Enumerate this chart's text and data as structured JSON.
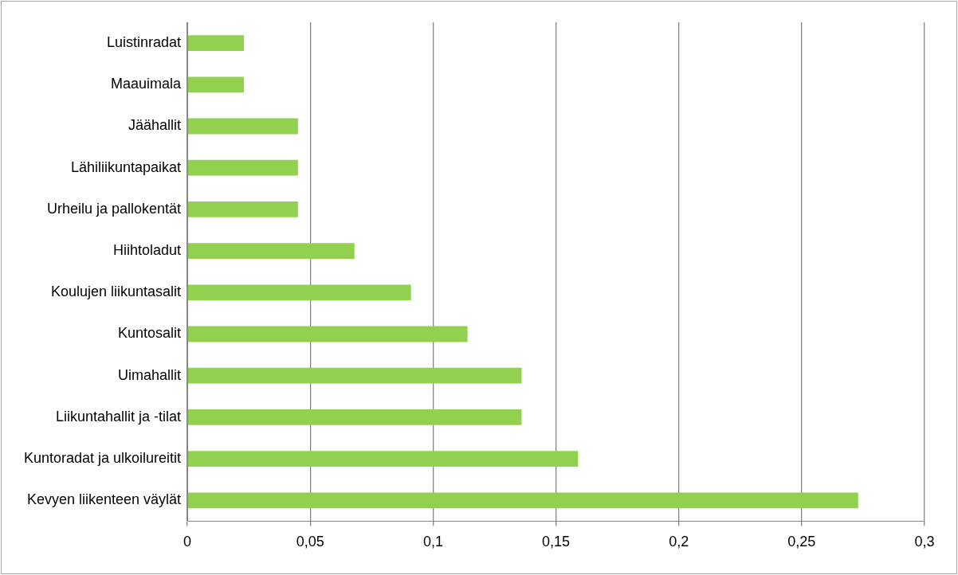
{
  "chart_data": {
    "type": "bar",
    "orientation": "horizontal",
    "categories": [
      "Luistinradat",
      "Maauimala",
      "Jäähallit",
      "Lähiliikuntapaikat",
      "Urheilu ja pallokentät",
      "Hiihtoladut",
      "Koulujen liikuntasalit",
      "Kuntosalit",
      "Uimahallit",
      "Liikuntahallit ja -tilat",
      "Kuntoradat ja ulkoilureitit",
      "Kevyen liikenteen väylät"
    ],
    "values": [
      0.023,
      0.023,
      0.045,
      0.045,
      0.045,
      0.068,
      0.091,
      0.114,
      0.136,
      0.136,
      0.159,
      0.273
    ],
    "color": "#92d050",
    "xlim": [
      0,
      0.3
    ],
    "xticks": [
      0,
      {
        "value": 0.05,
        "label": "0,05"
      },
      {
        "value": 0.1,
        "label": "0,1"
      },
      {
        "value": 0.15,
        "label": "0,15"
      },
      {
        "value": 0.2,
        "label": "0,2"
      },
      {
        "value": 0.25,
        "label": "0,25"
      },
      {
        "value": 0.3,
        "label": "0,3"
      }
    ],
    "grid": "x"
  }
}
